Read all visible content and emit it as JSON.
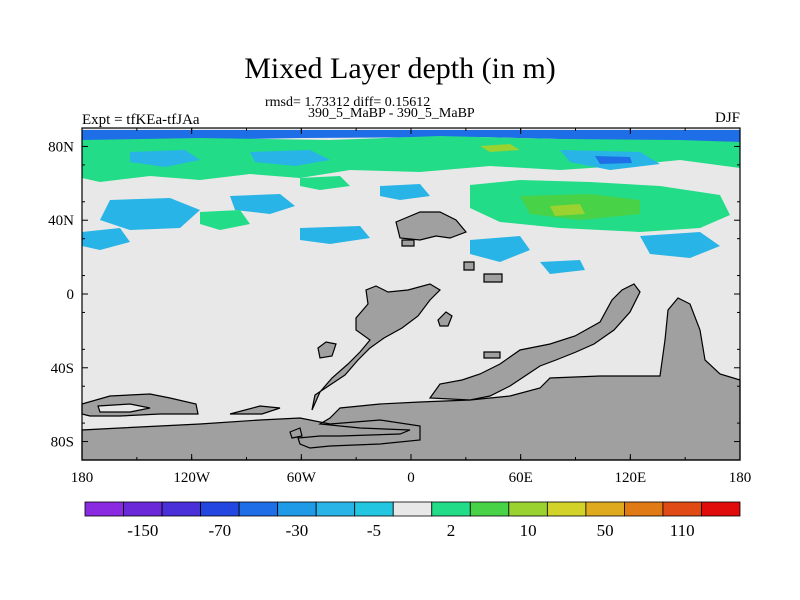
{
  "title": "Mixed Layer depth (in m)",
  "stats": "rmsd= 1.73312 diff= 0.15612",
  "subtitle": "390_5_MaBP - 390_5_MaBP",
  "expt": "Expt = tfKEa-tfJAa",
  "season": "DJF",
  "lat_ticks": [
    "80N",
    "40N",
    "0",
    "40S",
    "80S"
  ],
  "lon_ticks": [
    "180",
    "120W",
    "60W",
    "0",
    "60E",
    "120E",
    "180"
  ],
  "colorbar": {
    "colors": [
      "#8a2be2",
      "#6a28d8",
      "#4a30d8",
      "#2346e0",
      "#1e6ee8",
      "#1e9ae6",
      "#28b4e6",
      "#22c6e0",
      "#e8e8e8",
      "#22dc88",
      "#48d248",
      "#9ad230",
      "#d2d228",
      "#e0aa1e",
      "#e07a14",
      "#e04a14",
      "#e00c0c"
    ],
    "labels": [
      "-150",
      "-70",
      "-30",
      "-5",
      "2",
      "10",
      "50",
      "110"
    ],
    "label_after_box": [
      1,
      3,
      5,
      7,
      9,
      11,
      13,
      15
    ]
  },
  "colors": {
    "land": "#a0a0a0",
    "ocean": "#e8e8e8",
    "coast": "#000000"
  }
}
